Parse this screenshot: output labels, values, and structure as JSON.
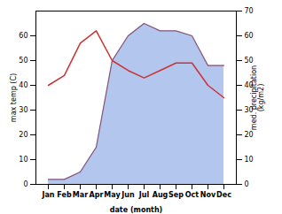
{
  "chart_data": {
    "type": "line",
    "categories": [
      "Jan",
      "Feb",
      "Mar",
      "Apr",
      "May",
      "Jun",
      "Jul",
      "Aug",
      "Sep",
      "Oct",
      "Nov",
      "Dec"
    ],
    "series": [
      {
        "type": "line",
        "color": "#cc3333",
        "values": [
          40,
          44,
          57,
          62,
          50,
          46,
          43,
          46,
          49,
          49,
          40,
          35
        ]
      },
      {
        "type": "area",
        "axis": "y2",
        "color": "#b3c6ee",
        "values": [
          2,
          2,
          5,
          15,
          50,
          60,
          65,
          62,
          62,
          60,
          48,
          48
        ]
      },
      {
        "type": "line",
        "axis": "y2",
        "color": "#885577",
        "values": [
          2,
          2,
          5,
          15,
          50,
          60,
          65,
          62,
          62,
          60,
          48,
          48
        ]
      }
    ],
    "xlabel": "date (month)",
    "ylabel": "max temp (C)",
    "y2label": "med. precipitation\n(kg/m2)",
    "ylim": [
      0,
      70
    ],
    "yticks": [
      0,
      10,
      20,
      30,
      40,
      50,
      60
    ],
    "y2lim": [
      0,
      70
    ],
    "y2ticks": [
      0,
      10,
      20,
      30,
      40,
      50,
      60,
      70
    ],
    "grid": false
  }
}
